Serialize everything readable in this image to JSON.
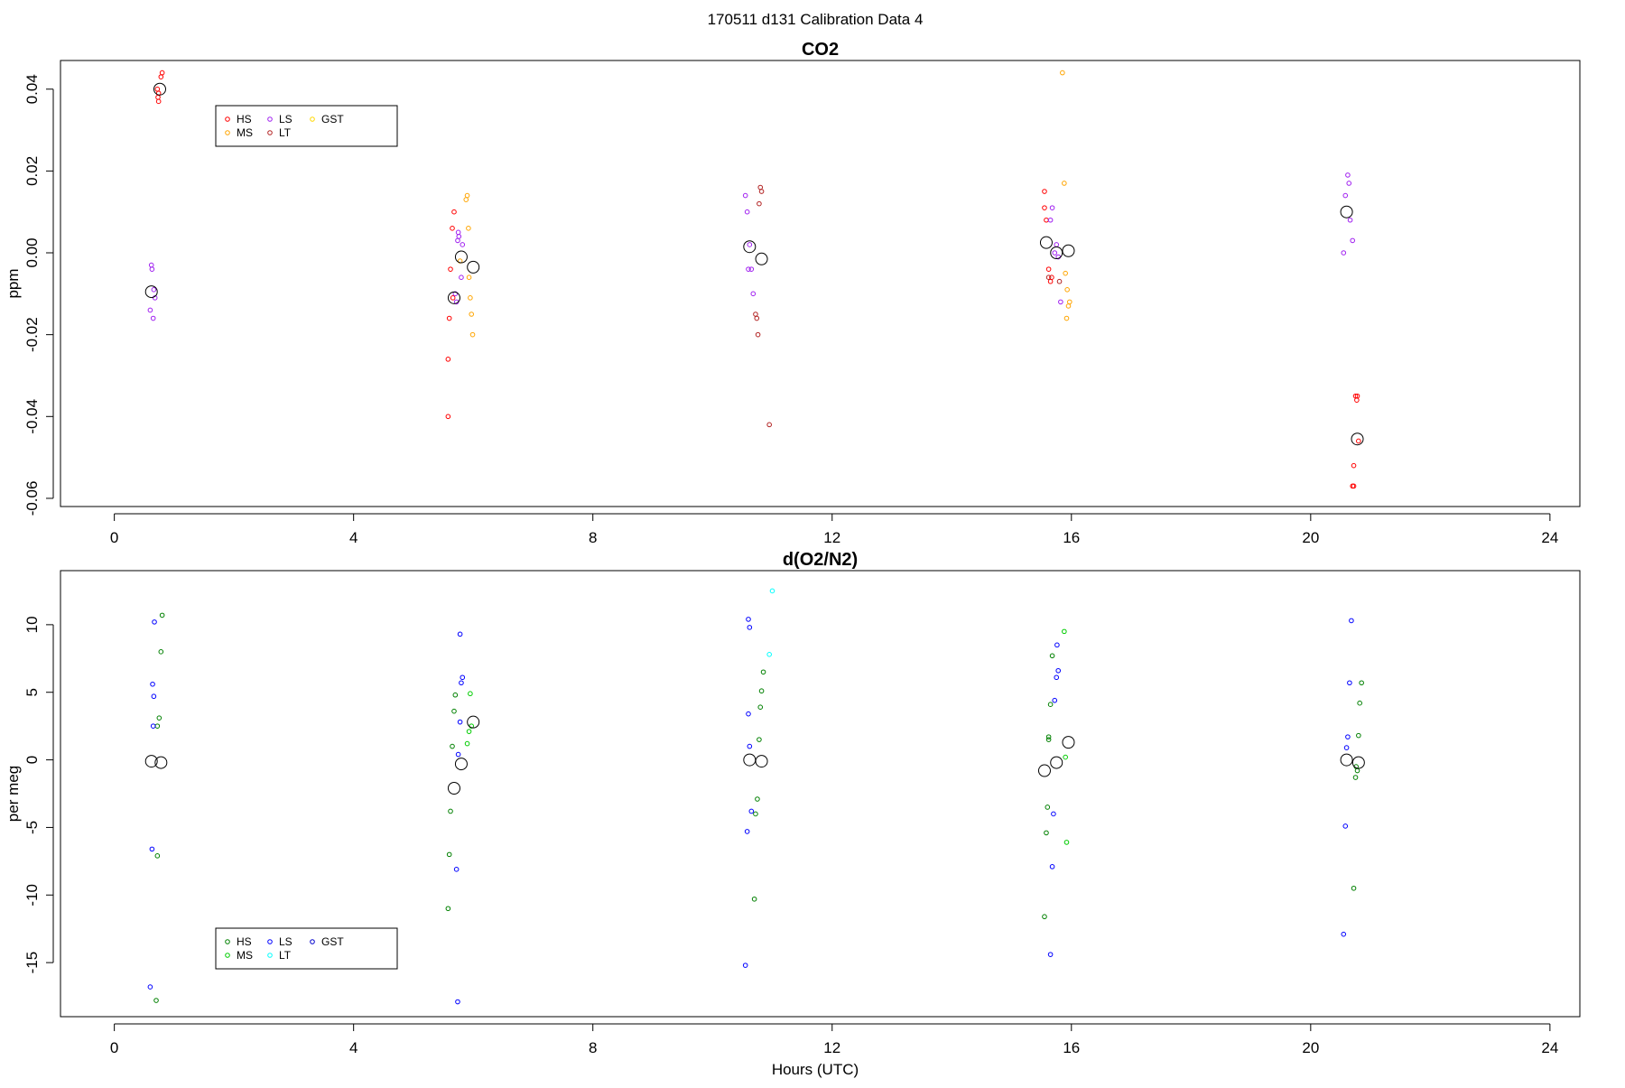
{
  "figure": {
    "title": "170511   d131   Calibration Data 4",
    "xlabel": "Hours (UTC)"
  },
  "chart_data": [
    {
      "type": "scatter",
      "title": "CO2",
      "xlabel": "",
      "ylabel": "ppm",
      "xlim": [
        -0.9,
        24.5
      ],
      "ylim": [
        -0.062,
        0.047
      ],
      "xticks": [
        0,
        4,
        8,
        12,
        16,
        20,
        24
      ],
      "yticks": [
        -0.06,
        -0.04,
        -0.02,
        0.0,
        0.02,
        0.04
      ],
      "ytick_labels": [
        "-0.06",
        "-0.04",
        "-0.02",
        "0.00",
        "0.02",
        "0.04"
      ],
      "legend": {
        "position": "top-left",
        "entries": [
          {
            "name": "HS",
            "color": "#ff0000"
          },
          {
            "name": "MS",
            "color": "#ffa500"
          },
          {
            "name": "LS",
            "color": "#a020f0"
          },
          {
            "name": "LT",
            "color": "#b22222"
          },
          {
            "name": "GST",
            "color": "#ffd700"
          }
        ]
      },
      "series": [
        {
          "name": "HS",
          "color": "#ff0000",
          "points": [
            [
              0.72,
              0.04
            ],
            [
              0.74,
              0.039
            ],
            [
              0.73,
              0.038
            ],
            [
              0.74,
              0.037
            ],
            [
              0.78,
              0.043
            ],
            [
              0.8,
              0.044
            ],
            [
              5.58,
              -0.026
            ],
            [
              5.58,
              -0.04
            ],
            [
              5.6,
              -0.016
            ],
            [
              5.62,
              -0.004
            ],
            [
              5.65,
              0.006
            ],
            [
              5.68,
              0.01
            ],
            [
              5.66,
              -0.011
            ],
            [
              15.55,
              0.015
            ],
            [
              15.55,
              0.011
            ],
            [
              15.58,
              0.008
            ],
            [
              15.62,
              -0.004
            ],
            [
              15.65,
              -0.007
            ],
            [
              15.67,
              -0.006
            ],
            [
              20.75,
              -0.035
            ],
            [
              20.78,
              -0.035
            ],
            [
              20.72,
              -0.052
            ],
            [
              20.7,
              -0.057
            ],
            [
              20.72,
              -0.057
            ],
            [
              20.77,
              -0.036
            ],
            [
              20.8,
              -0.046
            ]
          ]
        },
        {
          "name": "MS",
          "color": "#ffa500",
          "points": [
            [
              5.88,
              0.013
            ],
            [
              5.9,
              0.014
            ],
            [
              5.92,
              0.006
            ],
            [
              5.93,
              -0.006
            ],
            [
              5.95,
              -0.011
            ],
            [
              5.97,
              -0.015
            ],
            [
              5.99,
              -0.02
            ],
            [
              5.78,
              -0.002
            ],
            [
              15.85,
              0.044
            ],
            [
              15.88,
              0.017
            ],
            [
              15.9,
              -0.005
            ],
            [
              15.93,
              -0.009
            ],
            [
              15.95,
              -0.013
            ],
            [
              15.97,
              -0.012
            ],
            [
              15.92,
              -0.016
            ]
          ]
        },
        {
          "name": "LS",
          "color": "#a020f0",
          "points": [
            [
              0.62,
              -0.003
            ],
            [
              0.63,
              -0.004
            ],
            [
              0.6,
              -0.014
            ],
            [
              0.65,
              -0.016
            ],
            [
              0.68,
              -0.011
            ],
            [
              0.66,
              -0.009
            ],
            [
              5.7,
              -0.01
            ],
            [
              5.72,
              -0.012
            ],
            [
              5.74,
              0.003
            ],
            [
              5.75,
              0.005
            ],
            [
              5.76,
              0.004
            ],
            [
              5.8,
              -0.006
            ],
            [
              5.82,
              0.002
            ],
            [
              10.55,
              0.014
            ],
            [
              10.58,
              0.01
            ],
            [
              10.62,
              0.002
            ],
            [
              10.6,
              -0.004
            ],
            [
              10.65,
              -0.004
            ],
            [
              10.68,
              -0.01
            ],
            [
              15.68,
              0.011
            ],
            [
              15.72,
              0.0
            ],
            [
              15.75,
              0.002
            ],
            [
              15.78,
              -0.001
            ],
            [
              15.82,
              -0.012
            ],
            [
              15.65,
              0.008
            ],
            [
              20.55,
              0.0
            ],
            [
              20.58,
              0.014
            ],
            [
              20.62,
              0.019
            ],
            [
              20.64,
              0.017
            ],
            [
              20.66,
              0.008
            ],
            [
              20.7,
              0.003
            ]
          ]
        },
        {
          "name": "LT",
          "color": "#b22222",
          "points": [
            [
              10.72,
              -0.015
            ],
            [
              10.74,
              -0.016
            ],
            [
              10.76,
              -0.02
            ],
            [
              10.78,
              0.012
            ],
            [
              10.8,
              0.016
            ],
            [
              10.82,
              0.015
            ],
            [
              10.95,
              -0.042
            ],
            [
              15.62,
              -0.006
            ],
            [
              15.8,
              -0.007
            ]
          ]
        },
        {
          "name": "GST",
          "color": "#ffd700",
          "points": []
        }
      ],
      "means": [
        [
          0.62,
          -0.0095
        ],
        [
          0.76,
          0.04
        ],
        [
          5.68,
          -0.011
        ],
        [
          5.8,
          -0.001
        ],
        [
          6.0,
          -0.0035
        ],
        [
          10.62,
          0.0015
        ],
        [
          10.82,
          -0.0015
        ],
        [
          15.58,
          0.0025
        ],
        [
          15.75,
          0.0
        ],
        [
          15.95,
          0.0005
        ],
        [
          20.6,
          0.01
        ],
        [
          20.78,
          -0.0455
        ]
      ]
    },
    {
      "type": "scatter",
      "title": "d(O2/N2)",
      "xlabel": "Hours (UTC)",
      "ylabel": "per meg",
      "xlim": [
        -0.9,
        24.5
      ],
      "ylim": [
        -19,
        14
      ],
      "xticks": [
        0,
        4,
        8,
        12,
        16,
        20,
        24
      ],
      "yticks": [
        -15,
        -10,
        -5,
        0,
        5,
        10
      ],
      "ytick_labels": [
        "-15",
        "-10",
        "-5",
        "0",
        "5",
        "10"
      ],
      "legend": {
        "position": "bottom-left",
        "entries": [
          {
            "name": "HS",
            "color": "#008000"
          },
          {
            "name": "MS",
            "color": "#00cc00"
          },
          {
            "name": "LS",
            "color": "#0000ff"
          },
          {
            "name": "LT",
            "color": "#00ffff"
          },
          {
            "name": "GST",
            "color": "#0000cd"
          }
        ]
      },
      "series": [
        {
          "name": "HS",
          "color": "#008000",
          "points": [
            [
              0.72,
              2.5
            ],
            [
              0.75,
              3.1
            ],
            [
              0.78,
              8.0
            ],
            [
              0.8,
              10.7
            ],
            [
              0.72,
              -7.1
            ],
            [
              0.7,
              -17.8
            ],
            [
              5.58,
              -11.0
            ],
            [
              5.6,
              -7.0
            ],
            [
              5.62,
              -3.8
            ],
            [
              5.65,
              1.0
            ],
            [
              5.68,
              3.6
            ],
            [
              5.7,
              4.8
            ],
            [
              10.72,
              -4.0
            ],
            [
              10.75,
              -2.9
            ],
            [
              10.78,
              1.5
            ],
            [
              10.8,
              3.9
            ],
            [
              10.82,
              5.1
            ],
            [
              10.85,
              6.5
            ],
            [
              10.7,
              -10.3
            ],
            [
              15.55,
              -11.6
            ],
            [
              15.58,
              -5.4
            ],
            [
              15.6,
              -3.5
            ],
            [
              15.62,
              1.5
            ],
            [
              15.65,
              4.1
            ],
            [
              15.68,
              7.7
            ],
            [
              15.62,
              1.7
            ],
            [
              20.72,
              -9.5
            ],
            [
              20.75,
              -1.3
            ],
            [
              20.78,
              -0.8
            ],
            [
              20.8,
              1.8
            ],
            [
              20.82,
              4.2
            ],
            [
              20.85,
              5.7
            ],
            [
              20.76,
              -0.5
            ]
          ]
        },
        {
          "name": "MS",
          "color": "#00cc00",
          "points": [
            [
              5.9,
              1.2
            ],
            [
              5.93,
              2.1
            ],
            [
              5.95,
              4.9
            ],
            [
              5.97,
              2.5
            ],
            [
              15.88,
              9.5
            ],
            [
              15.9,
              0.2
            ],
            [
              15.92,
              -6.1
            ]
          ]
        },
        {
          "name": "LS",
          "color": "#0000ff",
          "points": [
            [
              0.6,
              -16.8
            ],
            [
              0.63,
              -6.6
            ],
            [
              0.65,
              2.5
            ],
            [
              0.66,
              4.7
            ],
            [
              0.64,
              5.6
            ],
            [
              0.67,
              10.2
            ],
            [
              5.72,
              -8.1
            ],
            [
              5.74,
              -17.9
            ],
            [
              5.75,
              0.4
            ],
            [
              5.78,
              2.8
            ],
            [
              5.8,
              5.7
            ],
            [
              5.82,
              6.1
            ],
            [
              5.78,
              9.3
            ],
            [
              10.55,
              -15.2
            ],
            [
              10.58,
              -5.3
            ],
            [
              10.6,
              3.4
            ],
            [
              10.62,
              1.0
            ],
            [
              10.65,
              -3.8
            ],
            [
              10.62,
              9.8
            ],
            [
              10.6,
              10.4
            ],
            [
              15.65,
              -14.4
            ],
            [
              15.68,
              -7.9
            ],
            [
              15.7,
              -4.0
            ],
            [
              15.72,
              4.4
            ],
            [
              15.75,
              6.1
            ],
            [
              15.78,
              6.6
            ],
            [
              15.76,
              8.5
            ],
            [
              20.55,
              -12.9
            ],
            [
              20.58,
              -4.9
            ],
            [
              20.6,
              0.9
            ],
            [
              20.62,
              1.7
            ],
            [
              20.65,
              5.7
            ],
            [
              20.68,
              10.3
            ]
          ]
        },
        {
          "name": "LT",
          "color": "#00ffff",
          "points": [
            [
              10.95,
              7.8
            ],
            [
              11.0,
              12.5
            ]
          ]
        },
        {
          "name": "GST",
          "color": "#0000cd",
          "points": []
        }
      ],
      "means": [
        [
          0.62,
          -0.1
        ],
        [
          0.78,
          -0.2
        ],
        [
          5.68,
          -2.1
        ],
        [
          5.8,
          -0.3
        ],
        [
          6.0,
          2.8
        ],
        [
          10.62,
          0.0
        ],
        [
          10.82,
          -0.1
        ],
        [
          15.55,
          -0.8
        ],
        [
          15.75,
          -0.2
        ],
        [
          15.95,
          1.3
        ],
        [
          20.6,
          0.0
        ],
        [
          20.8,
          -0.2
        ]
      ]
    }
  ]
}
